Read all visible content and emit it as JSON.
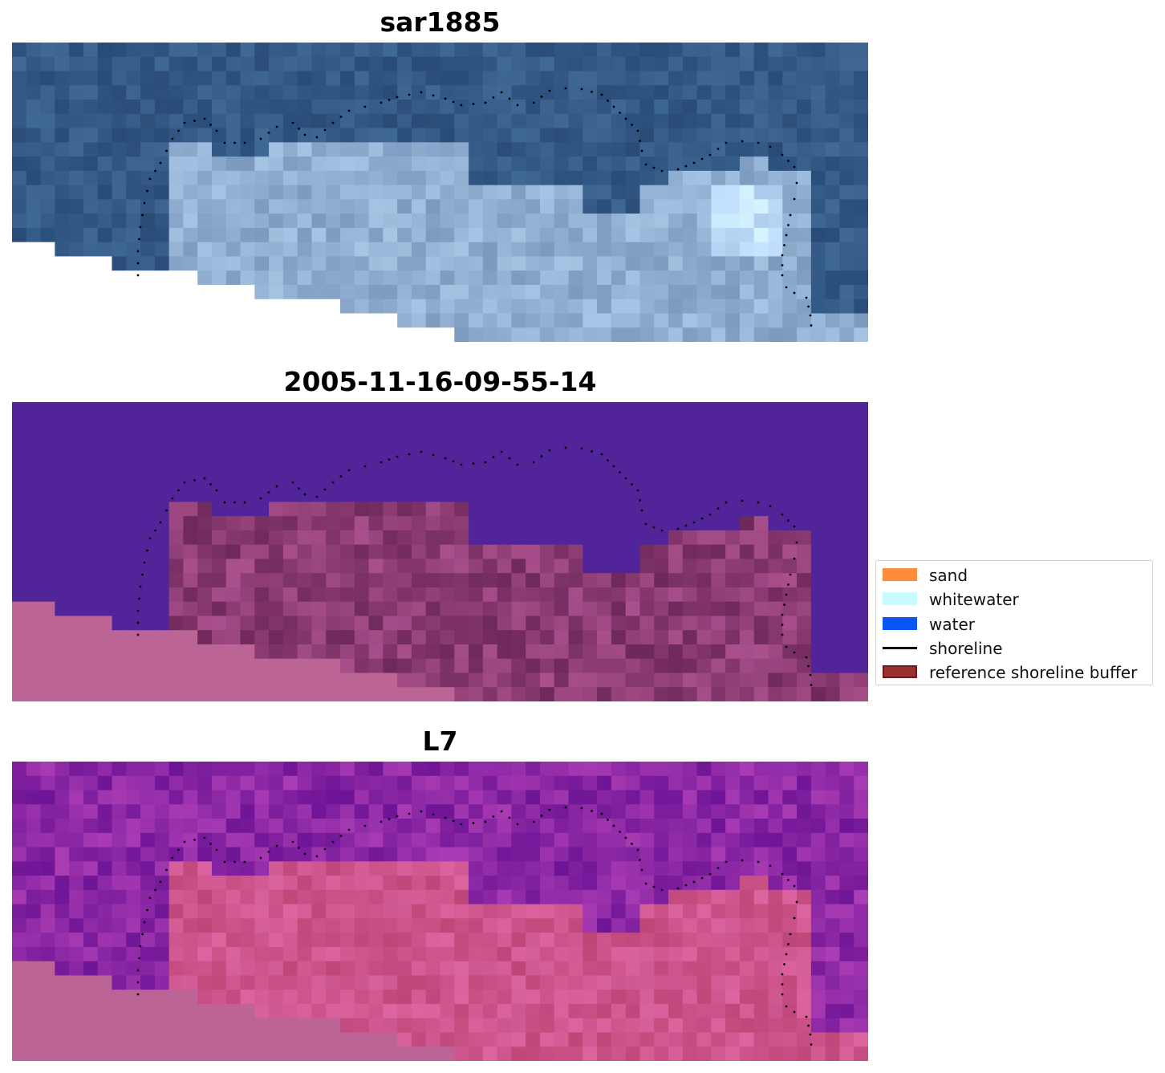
{
  "panels": [
    {
      "title": "sar1885",
      "kind": "rgb"
    },
    {
      "title": "2005-11-16-09-55-14",
      "kind": "classified"
    },
    {
      "title": "L7",
      "kind": "mndwi"
    }
  ],
  "legend": {
    "items": [
      {
        "label": "sand",
        "type": "patch",
        "color": "#ff8c3a"
      },
      {
        "label": "whitewater",
        "type": "patch",
        "color": "#c8fbfb"
      },
      {
        "label": "water",
        "type": "patch",
        "color": "#0a55f5"
      },
      {
        "label": "shoreline",
        "type": "line",
        "color": "#000000"
      },
      {
        "label": "reference shoreline buffer",
        "type": "patch",
        "color": "#9b3030",
        "edge": "#6e1a1a"
      }
    ]
  },
  "colors": {
    "rgb_water": "#2c5588",
    "classified_background": "#51249a",
    "classified_nodata": "#bb6495",
    "mndwi_water": "#7a1fa0",
    "mndwi_land": "#cc5a8e",
    "shoreline": "#000000"
  }
}
